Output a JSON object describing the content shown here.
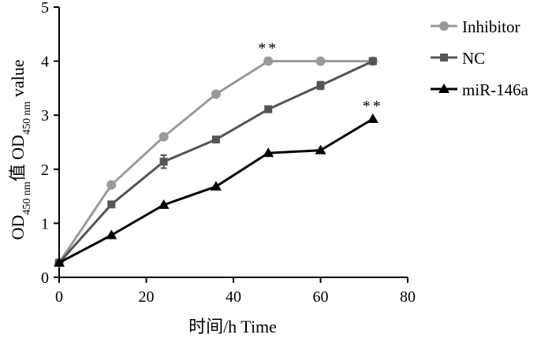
{
  "chart_data": {
    "type": "line",
    "title": "",
    "xlabel": "时间/h Time",
    "ylabel": {
      "base": "OD",
      "sub": "450 nm",
      "mid": "值 OD",
      "sub2": "450 nm",
      "tail": " value"
    },
    "xlim": [
      0,
      80
    ],
    "ylim": [
      0,
      5
    ],
    "x_ticks": [
      0,
      20,
      40,
      60,
      80
    ],
    "y_ticks": [
      0,
      1,
      2,
      3,
      4,
      5
    ],
    "x_tick_labels": [
      "0",
      "20",
      "40",
      "60",
      "80"
    ],
    "y_tick_labels": [
      "0",
      "1",
      "2",
      "3",
      "4",
      "5"
    ],
    "grid": false,
    "legend_position": "top-right",
    "series": [
      {
        "name": "Inhibitor",
        "color": "#9a9a9a",
        "marker": "circle",
        "x": [
          0,
          12,
          24,
          36,
          48,
          60,
          72
        ],
        "y": [
          0.27,
          1.71,
          2.6,
          3.39,
          4.0,
          4.0,
          4.0
        ],
        "err": [
          0.03,
          0.04,
          0.05,
          0.04,
          0.03,
          0.03,
          0.03
        ]
      },
      {
        "name": "NC",
        "color": "#555555",
        "marker": "square",
        "x": [
          0,
          12,
          24,
          36,
          48,
          60,
          72
        ],
        "y": [
          0.27,
          1.35,
          2.14,
          2.55,
          3.11,
          3.55,
          4.0
        ],
        "err": [
          0.03,
          0.04,
          0.12,
          0.04,
          0.04,
          0.07,
          0.03
        ]
      },
      {
        "name": "miR-146a",
        "color": "#000000",
        "marker": "triangle",
        "x": [
          0,
          12,
          24,
          36,
          48,
          60,
          72
        ],
        "y": [
          0.27,
          0.78,
          1.34,
          1.68,
          2.3,
          2.35,
          2.93
        ],
        "err": [
          0.03,
          0.03,
          0.03,
          0.03,
          0.03,
          0.03,
          0.03
        ]
      }
    ],
    "annotations": [
      {
        "text": "**",
        "x": 48,
        "y": 4.0,
        "series": "Inhibitor"
      },
      {
        "text": "**",
        "x": 72,
        "y": 2.93,
        "series": "miR-146a"
      }
    ]
  }
}
